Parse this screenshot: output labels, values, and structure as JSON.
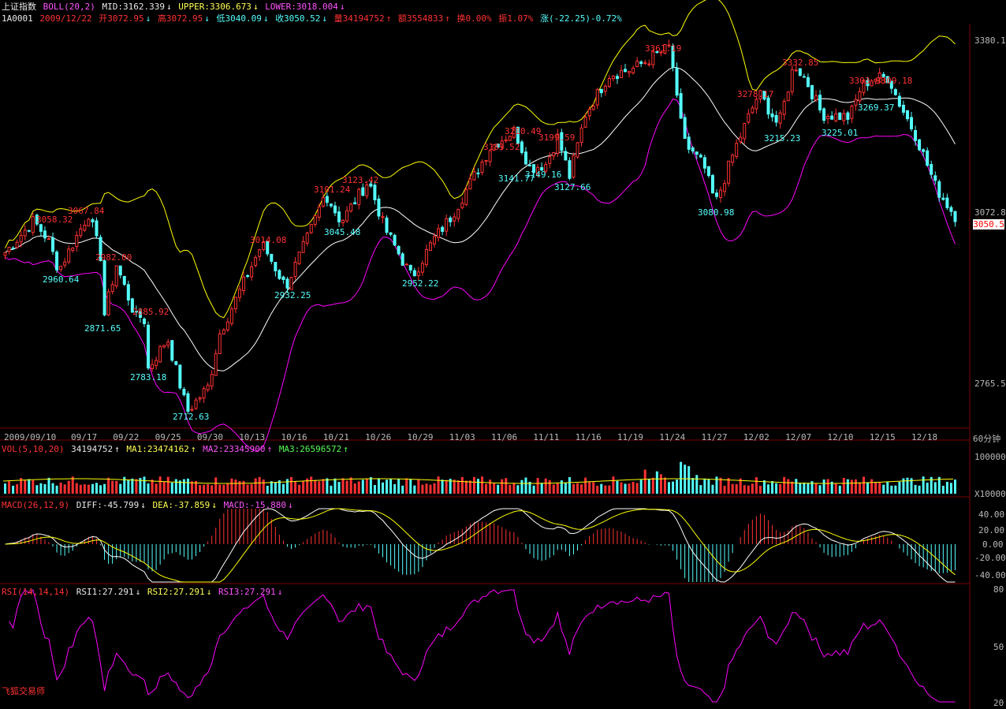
{
  "header": {
    "index_name": "上证指数",
    "boll_label": "BOLL(20,2)",
    "mid": "MID:3162.339",
    "upper": "UPPER:3306.673",
    "lower": "LOWER:3018.004",
    "code": "1A0001",
    "date": "2009/12/22",
    "open": "开3072.95",
    "high": "高3072.95",
    "low": "低3040.09",
    "close": "收3050.52",
    "volume": "量34194752",
    "amount": "额3554833",
    "turnover": "换0.00%",
    "amplitude": "振1.07%",
    "change": "涨(-22.25)-0.72%"
  },
  "price_axis": [
    "3380.1",
    "3072.8",
    "2765.5"
  ],
  "last_price": "3050.5",
  "period": "60分钟",
  "dates": [
    "2009/09/10",
    "09/17",
    "09/22",
    "09/25",
    "09/30",
    "10/13",
    "10/16",
    "10/21",
    "10/26",
    "10/29",
    "11/03",
    "11/06",
    "11/11",
    "11/16",
    "11/19",
    "11/24",
    "11/27",
    "12/02",
    "12/07",
    "12/10",
    "12/15",
    "12/18"
  ],
  "high_marks": [
    "3058.32",
    "3067.84",
    "2982.00",
    "2885.92",
    "3014.08",
    "3101.24",
    "3123.42",
    "3183.52",
    "3210.49",
    "3199.59",
    "3361.19",
    "3278.17",
    "3332.85",
    "3303.98",
    "3309.18"
  ],
  "low_marks": [
    "2960.64",
    "2871.65",
    "2783.18",
    "2712.63",
    "2932.25",
    "3045.48",
    "2952.22",
    "3141.77",
    "3149.16",
    "3127.66",
    "3080.98",
    "3215.23",
    "3225.01",
    "3269.37"
  ],
  "vol_header": {
    "label": "VOL(5,10,20)",
    "value": "34194752",
    "ma1": "MA1:23474162",
    "ma2": "MA2:23345900",
    "ma3": "MA3:26596572"
  },
  "vol_axis": [
    "100000",
    "X10000"
  ],
  "macd_header": {
    "label": "MACD(26,12,9)",
    "diff": "DIFF:-45.799",
    "dea": "DEA:-37.859",
    "macd": "MACD:-15.880"
  },
  "macd_axis": [
    "40.00",
    "20.00",
    "0.00",
    "-20.00",
    "-40.00"
  ],
  "rsi_header": {
    "label": "RSI(14,14,14)",
    "rsi1": "RSI1:27.291",
    "rsi2": "RSI2:27.291",
    "rsi3": "RSI3:27.291"
  },
  "rsi_axis": [
    "80",
    "50",
    "20"
  ],
  "footer": "飞狐交易师",
  "colors": {
    "up": "#ff3232",
    "down": "#54ffff",
    "mid": "#ffffff",
    "upper": "#ffff00",
    "lower": "#ff00ff",
    "rsi": "#ff00ff"
  },
  "chart_data": {
    "type": "candlestick",
    "title": "上证指数",
    "period": "60分钟",
    "ylim": [
      2690,
      3400
    ],
    "boll": {
      "mid": 3162.339,
      "upper": 3306.673,
      "lower": 3018.004
    },
    "last": {
      "date": "2009/12/22",
      "open": 3072.95,
      "high": 3072.95,
      "low": 3040.09,
      "close": 3050.52,
      "volume": 34194752
    },
    "swing_points": [
      {
        "type": "high",
        "value": 3058.32
      },
      {
        "type": "high",
        "value": 3067.84
      },
      {
        "type": "low",
        "value": 2960.64
      },
      {
        "type": "high",
        "value": 2982.0
      },
      {
        "type": "low",
        "value": 2871.65
      },
      {
        "type": "high",
        "value": 2885.92
      },
      {
        "type": "low",
        "value": 2783.18
      },
      {
        "type": "low",
        "value": 2712.63
      },
      {
        "type": "high",
        "value": 3014.08
      },
      {
        "type": "low",
        "value": 2932.25
      },
      {
        "type": "high",
        "value": 3101.24
      },
      {
        "type": "high",
        "value": 3123.42
      },
      {
        "type": "low",
        "value": 3045.48
      },
      {
        "type": "low",
        "value": 2952.22
      },
      {
        "type": "high",
        "value": 3183.52
      },
      {
        "type": "high",
        "value": 3210.49
      },
      {
        "type": "low",
        "value": 3141.77
      },
      {
        "type": "low",
        "value": 3149.16
      },
      {
        "type": "high",
        "value": 3199.59
      },
      {
        "type": "low",
        "value": 3127.66
      },
      {
        "type": "high",
        "value": 3361.19
      },
      {
        "type": "low",
        "value": 3080.98
      },
      {
        "type": "high",
        "value": 3278.17
      },
      {
        "type": "low",
        "value": 3215.23
      },
      {
        "type": "high",
        "value": 3332.85
      },
      {
        "type": "low",
        "value": 3225.01
      },
      {
        "type": "high",
        "value": 3303.98
      },
      {
        "type": "high",
        "value": 3309.18
      },
      {
        "type": "low",
        "value": 3269.37
      }
    ],
    "macd_range": [
      -45,
      45
    ],
    "rsi_range": [
      20,
      80
    ]
  }
}
